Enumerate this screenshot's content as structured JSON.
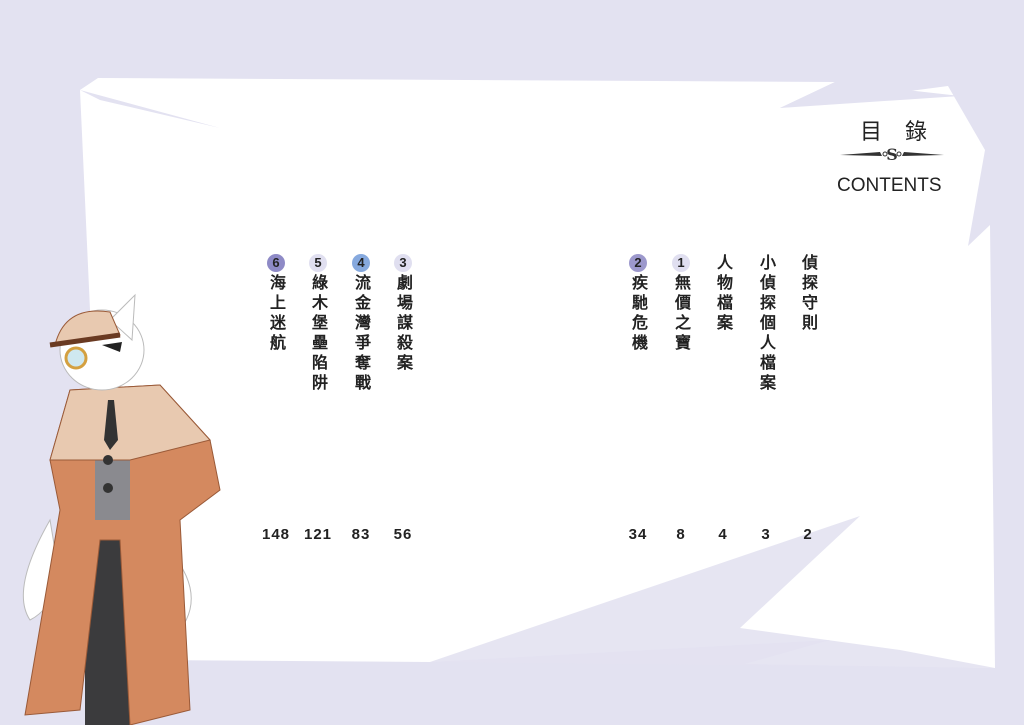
{
  "header": {
    "title_zh": "目 錄",
    "title_en": "CONTENTS"
  },
  "colors": {
    "background": "#e3e2f1",
    "paper": "#ffffff",
    "badge_purple": "#8e8ac6",
    "badge_blue": "#86a9de",
    "badge_light": "#e0dff0"
  },
  "entries": [
    {
      "number": "",
      "title": "偵探守則",
      "page": "2"
    },
    {
      "number": "",
      "title": "小偵探個人檔案",
      "page": "3"
    },
    {
      "number": "",
      "title": "人物檔案",
      "page": "4"
    },
    {
      "number": "1",
      "title": "無價之寶",
      "page": "8",
      "badge": "#e0dff0"
    },
    {
      "number": "2",
      "title": "疾馳危機",
      "page": "34",
      "badge": "#9c98cc"
    },
    {
      "number": "3",
      "title": "劇場謀殺案",
      "page": "56",
      "badge": "#e0dff0"
    },
    {
      "number": "4",
      "title": "流金灣爭奪戰",
      "page": "83",
      "badge": "#86a9de"
    },
    {
      "number": "5",
      "title": "綠木堡壘陷阱",
      "page": "121",
      "badge": "#e0dff0"
    },
    {
      "number": "6",
      "title": "海上迷航",
      "page": "148",
      "badge": "#8e8ac6"
    }
  ],
  "illustration": {
    "icon": "fox-detective-illustration"
  }
}
